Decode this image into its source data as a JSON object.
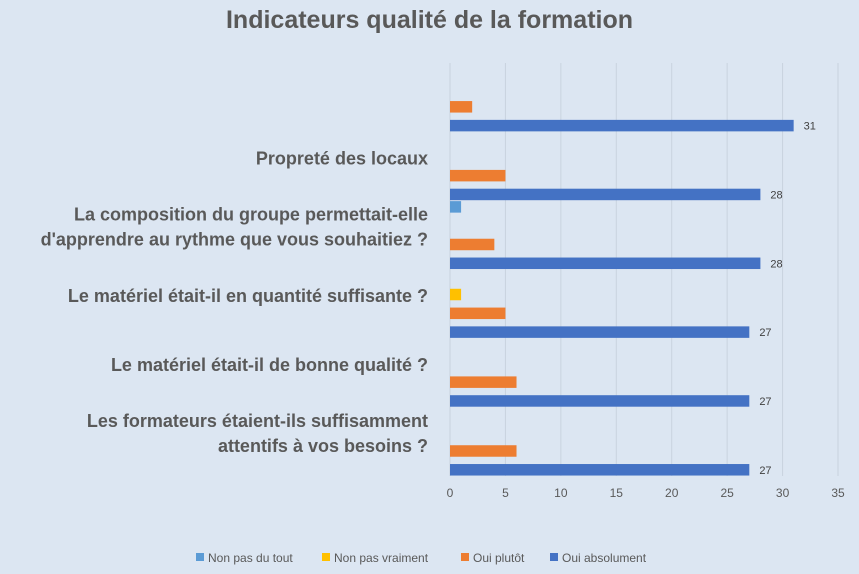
{
  "chart_data": {
    "type": "bar",
    "orientation": "horizontal",
    "title": "Indicateurs qualité de la formation",
    "categories": [
      "",
      "Propreté des locaux",
      "La composition du groupe permettait-elle d'apprendre au rythme que vous souhaitiez ?",
      "Le matériel était-il en quantité suffisante ?",
      "Le matériel était-il de bonne qualité ?",
      "Les formateurs étaient-ils suffisamment attentifs à vos besoins ?"
    ],
    "category_lines": [
      [],
      [
        "Propreté des locaux"
      ],
      [
        "La composition du groupe permettait-elle",
        "d'apprendre au rythme que vous souhaitiez ?"
      ],
      [
        "Le matériel était-il en quantité suffisante ?"
      ],
      [
        "Le matériel était-il de bonne qualité ?"
      ],
      [
        "Les formateurs étaient-ils suffisamment",
        "attentifs à vos besoins ?"
      ]
    ],
    "series": [
      {
        "name": "Non pas du tout",
        "color": "#5b9bd5",
        "values": [
          0,
          0,
          1,
          0,
          0,
          0
        ]
      },
      {
        "name": "Non pas vraiment",
        "color": "#ffc000",
        "values": [
          0,
          0,
          0,
          1,
          0,
          0
        ]
      },
      {
        "name": "Oui plutôt",
        "color": "#ed7d31",
        "values": [
          2,
          5,
          4,
          5,
          6,
          6
        ]
      },
      {
        "name": "Oui absolument",
        "color": "#4472c4",
        "values": [
          31,
          28,
          28,
          27,
          27,
          27
        ]
      }
    ],
    "data_labels": {
      "series": "Oui absolument",
      "values": [
        "31",
        "28",
        "28",
        "27",
        "27",
        "27"
      ]
    },
    "x_ticks": [
      "0",
      "5",
      "10",
      "15",
      "20",
      "25",
      "30",
      "35"
    ],
    "xlim": [
      0,
      35
    ],
    "grid": true,
    "legend_position": "bottom"
  }
}
